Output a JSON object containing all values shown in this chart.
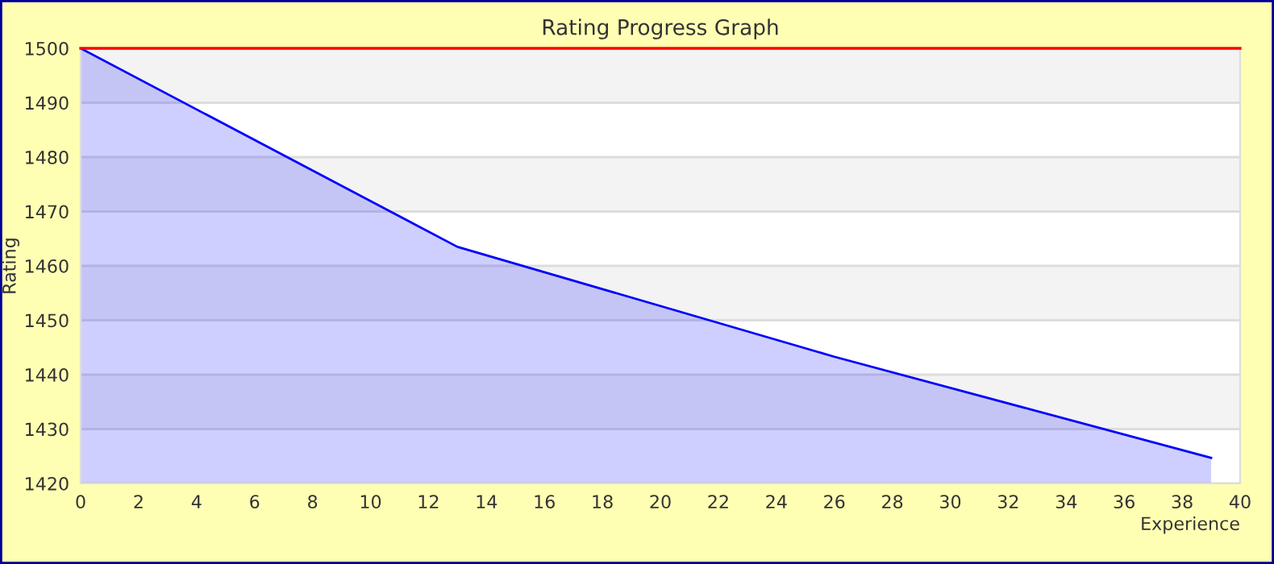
{
  "chart_data": {
    "type": "area",
    "title": "Rating Progress Graph",
    "xlabel": "Experience",
    "ylabel": "Rating",
    "x": [
      0,
      13,
      26,
      39
    ],
    "series": [
      {
        "color": "#0000ff",
        "values": [
          1500,
          1463.5,
          1443.3,
          1424.7
        ]
      }
    ],
    "xlim": [
      0,
      40
    ],
    "xticks": [
      0,
      2,
      4,
      6,
      8,
      10,
      12,
      14,
      16,
      18,
      20,
      22,
      24,
      26,
      28,
      30,
      32,
      34,
      36,
      38,
      40
    ],
    "ylim": [
      1420,
      1500
    ],
    "yticks": [
      1420,
      1430,
      1440,
      1450,
      1460,
      1470,
      1480,
      1490,
      1500
    ],
    "ref_lines": [
      {
        "axis": "y",
        "value": 1500,
        "color": "#ff0000"
      }
    ],
    "grid": "y",
    "legend": false
  }
}
